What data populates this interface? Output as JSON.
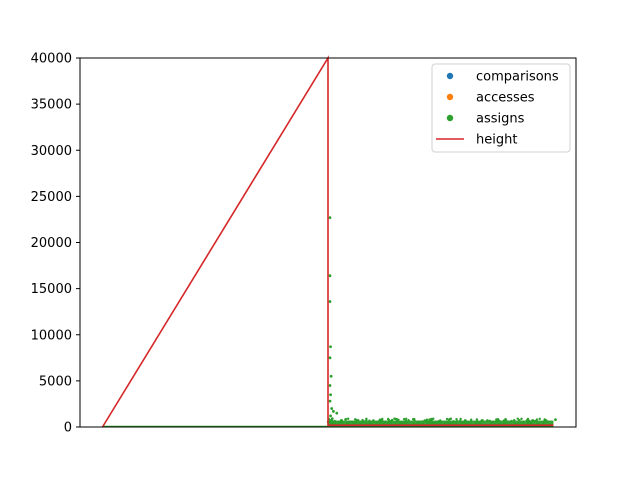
{
  "chart_data": {
    "type": "scatter",
    "title": "",
    "xlabel": "",
    "ylabel": "",
    "xlim": [
      -2000,
      42000
    ],
    "ylim": [
      0,
      40000
    ],
    "x_ticks_shown": false,
    "y_ticks": [
      0,
      5000,
      10000,
      15000,
      20000,
      25000,
      30000,
      35000,
      40000
    ],
    "grid": false,
    "legend_placement": "top-right",
    "series": [
      {
        "name": "comparisons",
        "kind": "scatter",
        "color": "#1f77b4"
      },
      {
        "name": "accesses",
        "kind": "scatter",
        "color": "#ff7f0e"
      },
      {
        "name": "assigns",
        "kind": "scatter",
        "color": "#2ca02c",
        "points": [
          [
            20000,
            22700
          ],
          [
            20000,
            16400
          ],
          [
            20000,
            13600
          ],
          [
            20050,
            8700
          ],
          [
            20000,
            7500
          ],
          [
            20100,
            5500
          ],
          [
            20000,
            4500
          ],
          [
            20050,
            3500
          ],
          [
            20000,
            2800
          ],
          [
            20150,
            2000
          ],
          [
            20300,
            1700
          ],
          [
            20600,
            1500
          ],
          [
            20050,
            1200
          ],
          [
            20200,
            900
          ],
          [
            21000,
            700
          ],
          [
            23000,
            600
          ],
          [
            26000,
            700
          ],
          [
            29000,
            650
          ],
          [
            32000,
            700
          ],
          [
            35000,
            650
          ],
          [
            38000,
            700
          ],
          [
            40000,
            800
          ]
        ],
        "band": {
          "x": [
            20000,
            40000
          ],
          "y": [
            0,
            700
          ]
        }
      },
      {
        "name": "height",
        "kind": "line",
        "color": "#d62728",
        "points": [
          [
            0,
            0
          ],
          [
            20000,
            40000
          ],
          [
            20000,
            200
          ],
          [
            40000,
            200
          ]
        ]
      }
    ]
  }
}
